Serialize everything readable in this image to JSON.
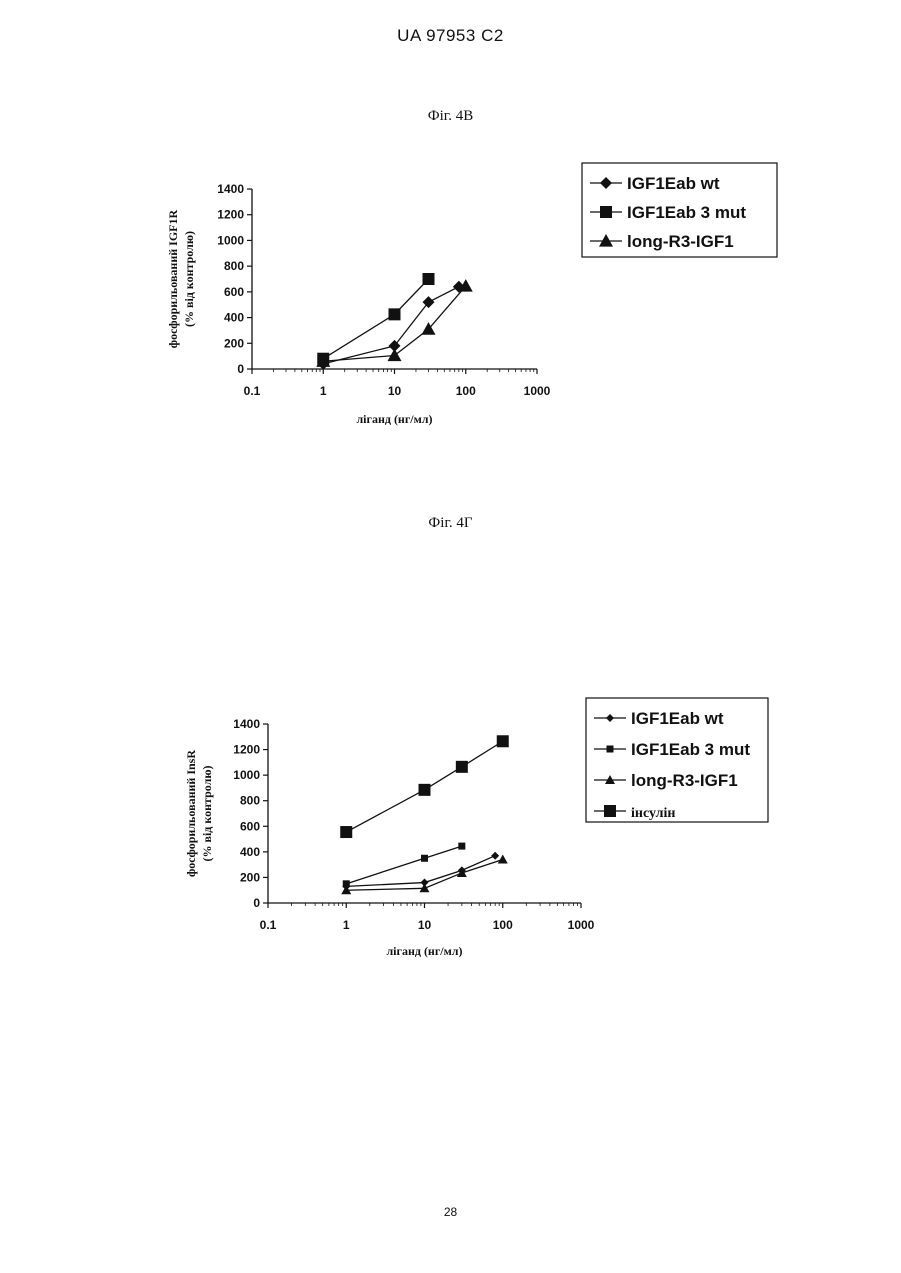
{
  "header": {
    "doc_id": "UA   97953   C2"
  },
  "page_number": "28",
  "colors": {
    "ink": "#111111",
    "background": "#ffffff"
  },
  "chart_data": [
    {
      "figure_label": "Фіг. 4В",
      "type": "line",
      "xscale": "log",
      "xlim": [
        0.1,
        1000
      ],
      "ylim": [
        0,
        1400
      ],
      "xlabel": "ліганд (нг/мл)",
      "ylabel_line1": "фосфорильований IGF1R",
      "ylabel_line2": "(% від контролю)",
      "xticks": [
        "0.1",
        "1",
        "10",
        "100",
        "1000"
      ],
      "yticks": [
        "0",
        "200",
        "400",
        "600",
        "800",
        "1000",
        "1200",
        "1400"
      ],
      "legend_position": "top-right",
      "series": [
        {
          "name": "IGF1Eab wt",
          "marker": "diamond",
          "x": [
            1,
            10,
            30,
            80
          ],
          "y": [
            40,
            180,
            520,
            640
          ]
        },
        {
          "name": "IGF1Eab 3 mut",
          "marker": "square",
          "x": [
            1,
            10,
            30
          ],
          "y": [
            80,
            425,
            700
          ]
        },
        {
          "name": "long-R3-IGF1",
          "marker": "triangle",
          "x": [
            1,
            10,
            30,
            100
          ],
          "y": [
            60,
            105,
            310,
            645
          ]
        }
      ]
    },
    {
      "figure_label": "Фіг. 4Г",
      "type": "line",
      "xscale": "log",
      "xlim": [
        0.1,
        1000
      ],
      "ylim": [
        0,
        1400
      ],
      "xlabel": "ліганд (нг/мл)",
      "ylabel_line1": "фосфорильований InsR",
      "ylabel_line2": "(% від контролю)",
      "xticks": [
        "0.1",
        "1",
        "10",
        "100",
        "1000"
      ],
      "yticks": [
        "0",
        "200",
        "400",
        "600",
        "800",
        "1000",
        "1200",
        "1400"
      ],
      "legend_position": "top-right",
      "series": [
        {
          "name": "IGF1Eab wt",
          "marker": "diamond",
          "x": [
            1,
            10,
            30,
            80
          ],
          "y": [
            130,
            160,
            255,
            370
          ]
        },
        {
          "name": "IGF1Eab 3 mut",
          "marker": "square",
          "x": [
            1,
            10,
            30
          ],
          "y": [
            150,
            350,
            445
          ]
        },
        {
          "name": "long-R3-IGF1",
          "marker": "triangle",
          "x": [
            1,
            10,
            30,
            100
          ],
          "y": [
            100,
            115,
            235,
            340
          ]
        },
        {
          "name": "інсулін",
          "marker": "square-large",
          "x": [
            1,
            10,
            30,
            100
          ],
          "y": [
            555,
            885,
            1065,
            1265
          ]
        }
      ]
    }
  ]
}
